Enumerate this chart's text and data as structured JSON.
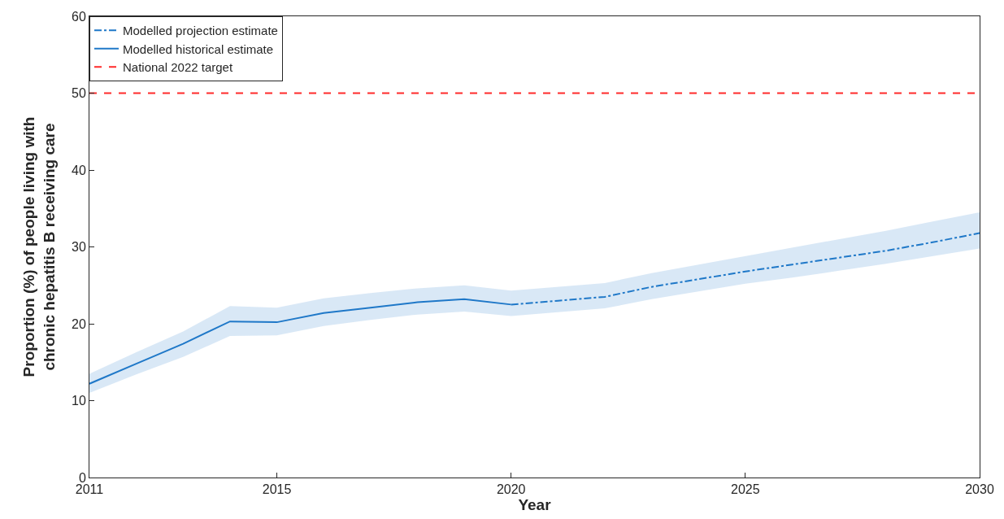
{
  "chart_data": {
    "type": "line",
    "xlabel": "Year",
    "ylabel": "Proportion (%) of people living with\nchronic hepatitis B receiving care",
    "xlim": [
      2011,
      2030
    ],
    "xticks": [
      2011,
      2015,
      2020,
      2025,
      2030
    ],
    "ylim": [
      0,
      60
    ],
    "yticks": [
      0,
      10,
      20,
      30,
      40,
      50,
      60
    ],
    "series": [
      {
        "name": "Modelled projection estimate",
        "color": "#1f78c8",
        "line_style": "dashdot",
        "x": [
          2020,
          2021,
          2022,
          2023,
          2024,
          2025,
          2026,
          2027,
          2028,
          2029,
          2030
        ],
        "values": [
          22.5,
          23.0,
          23.5,
          24.8,
          25.8,
          26.8,
          27.7,
          28.6,
          29.5,
          30.6,
          31.8
        ],
        "lower": [
          21.0,
          21.5,
          22.0,
          23.2,
          24.2,
          25.2,
          26.0,
          26.9,
          27.8,
          28.8,
          29.8
        ],
        "upper": [
          24.3,
          24.8,
          25.3,
          26.6,
          27.7,
          28.8,
          29.9,
          31.0,
          32.1,
          33.3,
          34.5
        ]
      },
      {
        "name": "Modelled historical estimate",
        "color": "#1f78c8",
        "line_style": "solid",
        "x": [
          2011,
          2012,
          2013,
          2014,
          2015,
          2016,
          2017,
          2018,
          2019,
          2020
        ],
        "values": [
          12.2,
          14.8,
          17.4,
          20.3,
          20.2,
          21.4,
          22.1,
          22.8,
          23.2,
          22.5
        ],
        "lower": [
          11.0,
          13.4,
          15.7,
          18.4,
          18.5,
          19.7,
          20.5,
          21.2,
          21.6,
          21.0
        ],
        "upper": [
          13.5,
          16.3,
          19.0,
          22.3,
          22.1,
          23.3,
          24.0,
          24.6,
          25.0,
          24.3
        ]
      }
    ],
    "ref_lines": [
      {
        "axis": "y",
        "value": 50,
        "label": "National 2022 target",
        "color": "#ff2a2a",
        "line_style": "dashed"
      }
    ],
    "legend": "top left"
  }
}
